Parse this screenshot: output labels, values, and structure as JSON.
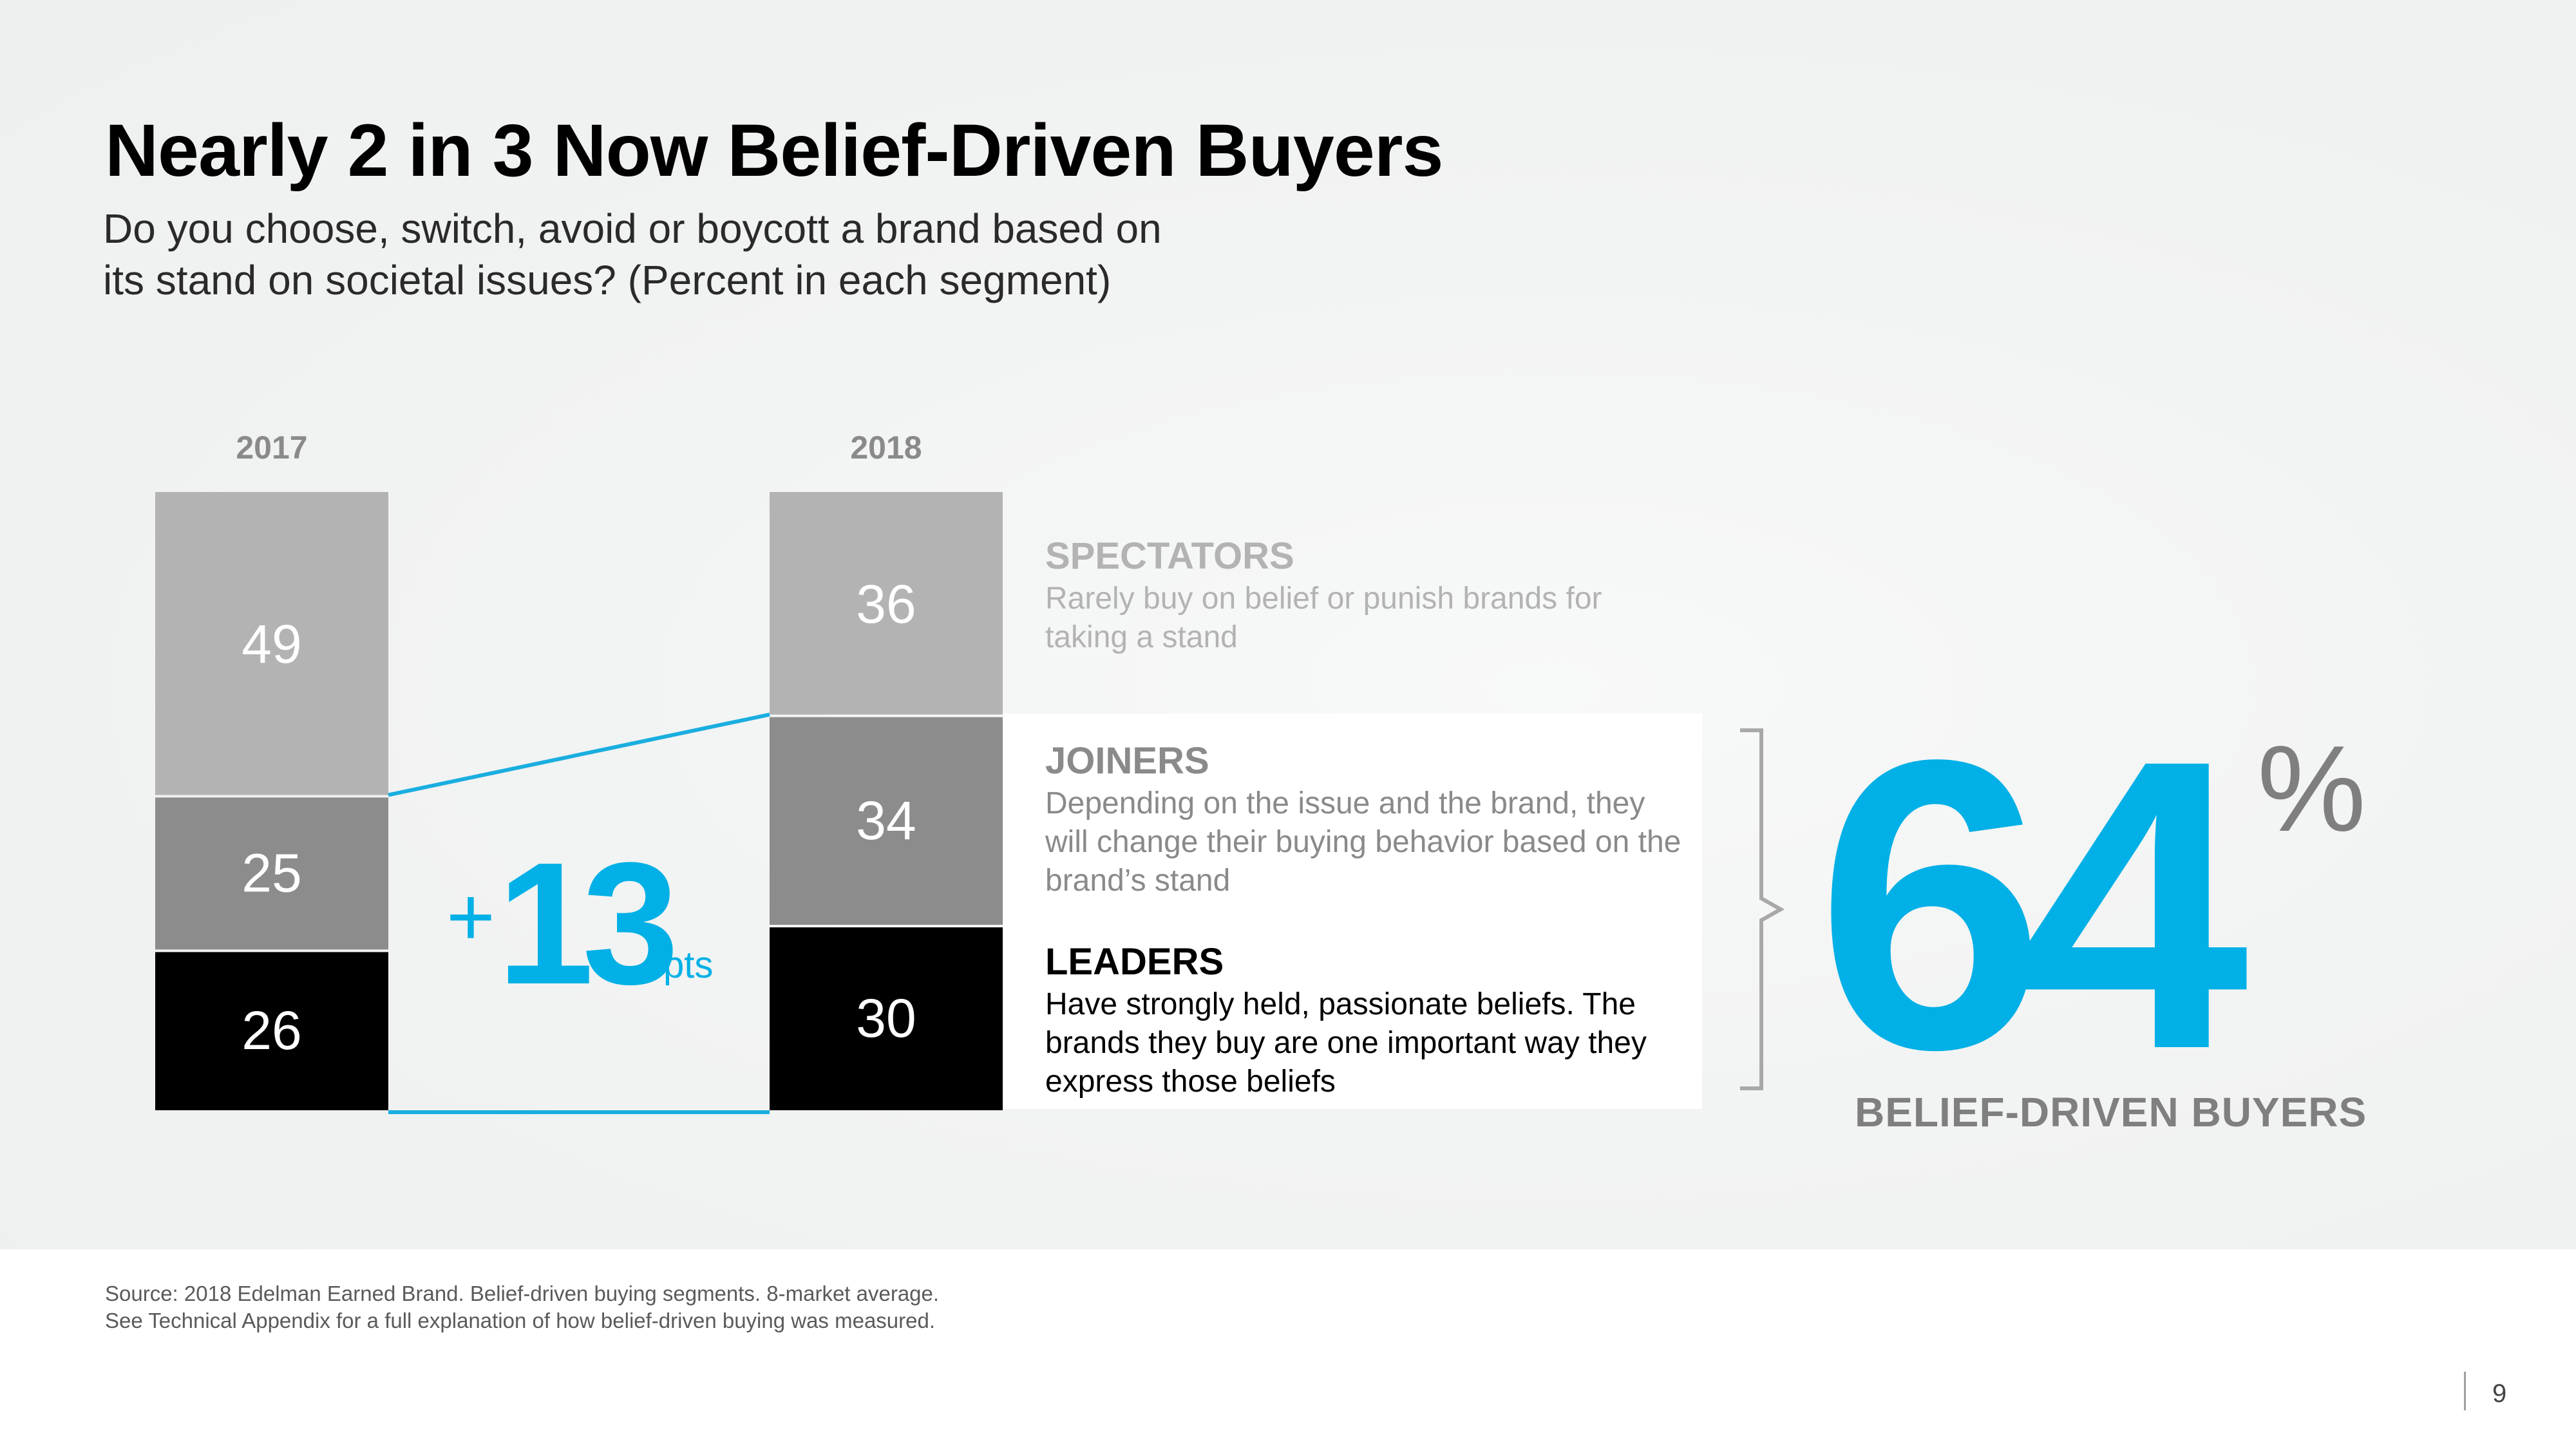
{
  "title": "Nearly 2 in 3 Now Belief-Driven Buyers",
  "subtitle": [
    "Do you choose, switch, avoid or boycott a brand based on",
    "its stand on societal issues? (Percent in each segment)"
  ],
  "chart_data": {
    "type": "bar",
    "stacked": true,
    "title": "Nearly 2 in 3 Now Belief-Driven Buyers",
    "categories": [
      "2017",
      "2018"
    ],
    "series": [
      {
        "name": "LEADERS",
        "values": [
          26,
          30
        ],
        "color": "#000000"
      },
      {
        "name": "JOINERS",
        "values": [
          25,
          34
        ],
        "color": "#8c8c8c"
      },
      {
        "name": "SPECTATORS",
        "values": [
          49,
          36
        ],
        "color": "#b3b3b3"
      }
    ],
    "ylim": [
      0,
      100
    ],
    "xlabel": "",
    "ylabel": "Percent in each segment",
    "connector_color": "#1aaee0"
  },
  "segments": {
    "spectators": {
      "head": "SPECTATORS",
      "desc": "Rarely buy on belief or punish brands for taking a stand"
    },
    "joiners": {
      "head": "JOINERS",
      "desc": "Depending on the issue and the brand, they will change their buying behavior based on the brand’s stand"
    },
    "leaders": {
      "head": "LEADERS",
      "desc": "Have strongly held, passionate beliefs. The brands they buy are one important way they express those beliefs"
    }
  },
  "change": {
    "sign": "+",
    "value": "13",
    "unit": "pts"
  },
  "highlight": {
    "value": "64",
    "unit": "%",
    "label": "BELIEF-DRIVEN BUYERS"
  },
  "source": [
    "Source: 2018 Edelman Earned Brand. Belief-driven buying segments. 8-market average.",
    "See Technical Appendix for a full explanation of how belief-driven buying was measured."
  ],
  "page_number": "9",
  "colors": {
    "accent": "#00b0e6",
    "leaders": "#000000",
    "joiners": "#8c8c8c",
    "spectators": "#b3b3b3"
  }
}
